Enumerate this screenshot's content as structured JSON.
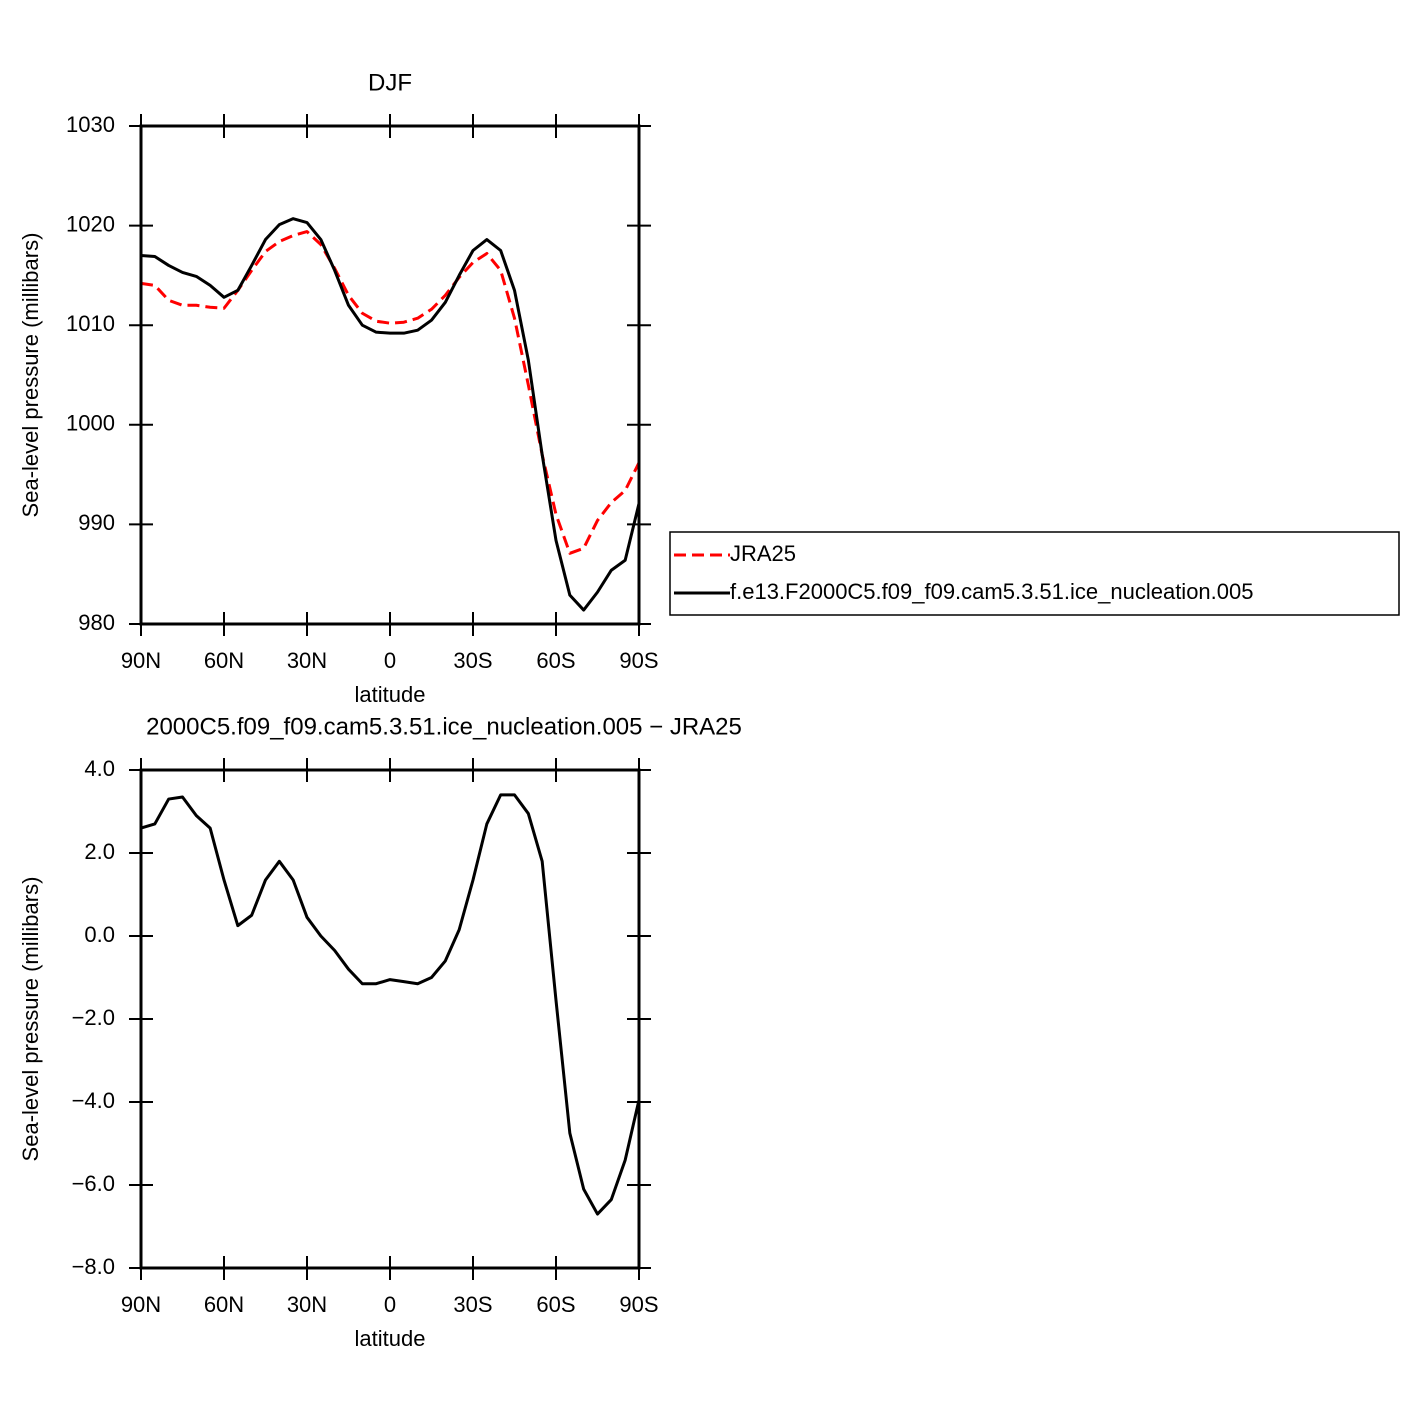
{
  "chart_data": [
    {
      "type": "line",
      "title": "DJF",
      "xlabel": "latitude",
      "ylabel": "Sea-level pressure (millibars)",
      "x": [
        90,
        85,
        80,
        75,
        70,
        65,
        60,
        55,
        50,
        45,
        40,
        35,
        30,
        25,
        20,
        15,
        10,
        5,
        0,
        -5,
        -10,
        -15,
        -20,
        -25,
        -30,
        -35,
        -40,
        -45,
        -50,
        -55,
        -60,
        -65,
        -70,
        -75,
        -80,
        -85,
        -90
      ],
      "series": [
        {
          "name": "JRA25",
          "color": "#ff0000",
          "style": "dashed",
          "values": [
            1014.2,
            1014.0,
            1012.5,
            1012.0,
            1012.0,
            1011.8,
            1011.7,
            1013.5,
            1015.5,
            1017.4,
            1018.4,
            1019.0,
            1019.4,
            1018.1,
            1015.7,
            1013.0,
            1011.2,
            1010.4,
            1010.2,
            1010.3,
            1010.7,
            1011.6,
            1013.0,
            1014.8,
            1016.3,
            1017.2,
            1015.5,
            1010.7,
            1004.0,
            997.0,
            991.0,
            987.1,
            987.6,
            990.4,
            992.2,
            993.4,
            996.2
          ]
        },
        {
          "name": "f.e13.F2000C5.f09_f09.cam5.3.51.ice_nucleation.005",
          "color": "#000000",
          "style": "solid",
          "values": [
            1017.0,
            1016.9,
            1016.0,
            1015.3,
            1014.9,
            1014.0,
            1012.8,
            1013.5,
            1016.0,
            1018.6,
            1020.1,
            1020.7,
            1020.3,
            1018.6,
            1015.5,
            1012.0,
            1010.0,
            1009.3,
            1009.2,
            1009.2,
            1009.5,
            1010.5,
            1012.3,
            1015.0,
            1017.5,
            1018.6,
            1017.5,
            1013.5,
            1006.5,
            997.0,
            988.4,
            982.9,
            981.4,
            983.2,
            985.4,
            986.4,
            992.1
          ]
        }
      ],
      "xlim": [
        90,
        -90
      ],
      "xticks": [
        {
          "value": 90,
          "label": "90N"
        },
        {
          "value": 60,
          "label": "60N"
        },
        {
          "value": 30,
          "label": "30N"
        },
        0,
        {
          "value": -30,
          "label": "30S"
        },
        {
          "value": -60,
          "label": "60S"
        },
        {
          "value": -90,
          "label": "90S"
        }
      ],
      "ylim": [
        980,
        1030
      ],
      "yticks": [
        980,
        990,
        1000,
        1010,
        1020,
        1030
      ],
      "legend": "right"
    },
    {
      "type": "line",
      "title": "2000C5.f09_f09.cam5.3.51.ice_nucleation.005 − JRA25",
      "xlabel": "latitude",
      "ylabel": "Sea-level pressure (millibars)",
      "x": [
        90,
        85,
        80,
        75,
        70,
        65,
        60,
        55,
        50,
        45,
        40,
        35,
        30,
        25,
        20,
        15,
        10,
        5,
        0,
        -5,
        -10,
        -15,
        -20,
        -25,
        -30,
        -35,
        -40,
        -45,
        -50,
        -55,
        -60,
        -65,
        -70,
        -75,
        -80,
        -85,
        -90
      ],
      "values": [
        2.6,
        2.7,
        3.3,
        3.35,
        2.9,
        2.6,
        1.35,
        0.25,
        0.5,
        1.35,
        1.8,
        1.35,
        0.45,
        0.0,
        -0.35,
        -0.8,
        -1.15,
        -1.15,
        -1.05,
        -1.1,
        -1.15,
        -1.0,
        -0.6,
        0.15,
        1.35,
        2.7,
        3.4,
        3.4,
        2.95,
        1.8,
        -1.55,
        -4.75,
        -6.1,
        -6.7,
        -6.35,
        -5.4,
        -3.95
      ],
      "color": "#000000",
      "xlim": [
        90,
        -90
      ],
      "xticks": [
        {
          "value": 90,
          "label": "90N"
        },
        {
          "value": 60,
          "label": "60N"
        },
        {
          "value": 30,
          "label": "30N"
        },
        0,
        {
          "value": -30,
          "label": "30S"
        },
        {
          "value": -60,
          "label": "60S"
        },
        {
          "value": -90,
          "label": "90S"
        }
      ],
      "ylim": [
        -8,
        4
      ],
      "yticks": [
        {
          "value": -8,
          "label": "−8.0"
        },
        {
          "value": -6,
          "label": "−6.0"
        },
        {
          "value": -4,
          "label": "−4.0"
        },
        {
          "value": -2,
          "label": "−2.0"
        },
        {
          "value": 0,
          "label": "0.0"
        },
        {
          "value": 2,
          "label": "2.0"
        },
        {
          "value": 4,
          "label": "4.0"
        }
      ]
    }
  ]
}
